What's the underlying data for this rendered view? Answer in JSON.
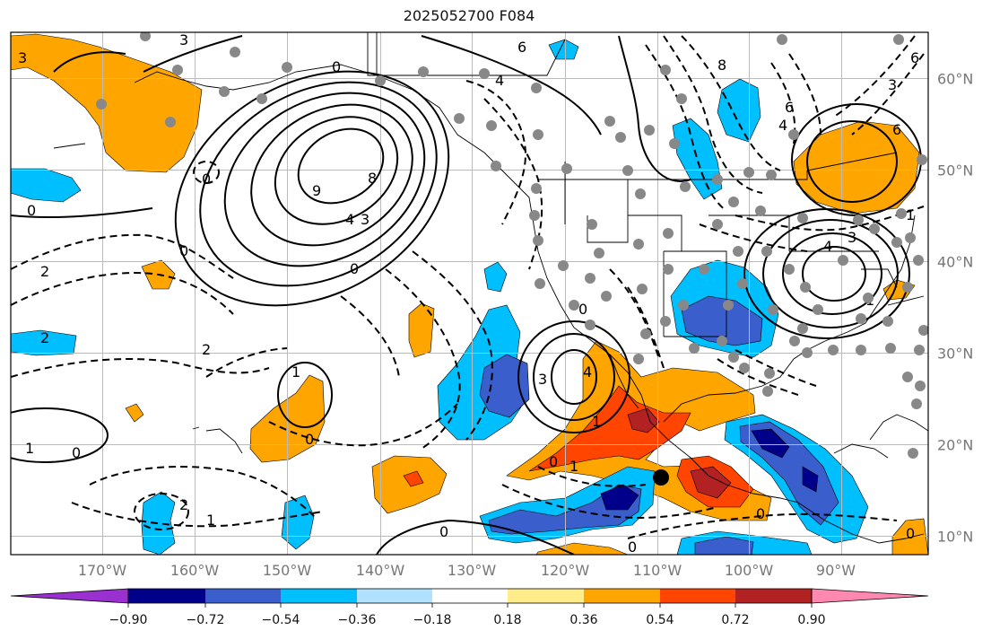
{
  "title": "2025052700 F084",
  "lon_labels": [
    "170°W",
    "160°W",
    "150°W",
    "140°W",
    "130°W",
    "120°W",
    "110°W",
    "100°W",
    "90°W"
  ],
  "lat_labels": [
    "60°N",
    "50°N",
    "40°N",
    "30°N",
    "20°N",
    "10°N"
  ],
  "colorbar": {
    "ticks": [
      "−0.90",
      "−0.72",
      "−0.54",
      "−0.36",
      "−0.18",
      "0.18",
      "0.36",
      "0.54",
      "0.72",
      "0.90"
    ],
    "colors": [
      "#9b30d0",
      "#00008b",
      "#3a5fcd",
      "#00bfff",
      "#b0e2ff",
      "#ffffff",
      "#ffec8b",
      "#ffa500",
      "#ff4500",
      "#b22222",
      "#ff88b0"
    ]
  },
  "colors": {
    "frame": "#000000",
    "grid": "#bbbbbb",
    "gray_dot": "#888888",
    "contour": "#000000"
  },
  "contour_labels": [
    "3",
    "6",
    "4",
    "8",
    "3",
    "0",
    "0",
    "8",
    "6",
    "9",
    "4",
    "3",
    "1",
    "0",
    "0",
    "2",
    "0",
    "2",
    "2",
    "1",
    "0",
    "0",
    "1",
    "0",
    "2",
    "1",
    "0",
    "3",
    "4",
    "1",
    "0",
    "1",
    "3",
    "4",
    "3",
    "6",
    "6",
    "4",
    "1",
    "0",
    "0",
    "0"
  ],
  "markers": [
    {
      "name": "storm-center",
      "lon": -109,
      "lat": 16
    }
  ]
}
